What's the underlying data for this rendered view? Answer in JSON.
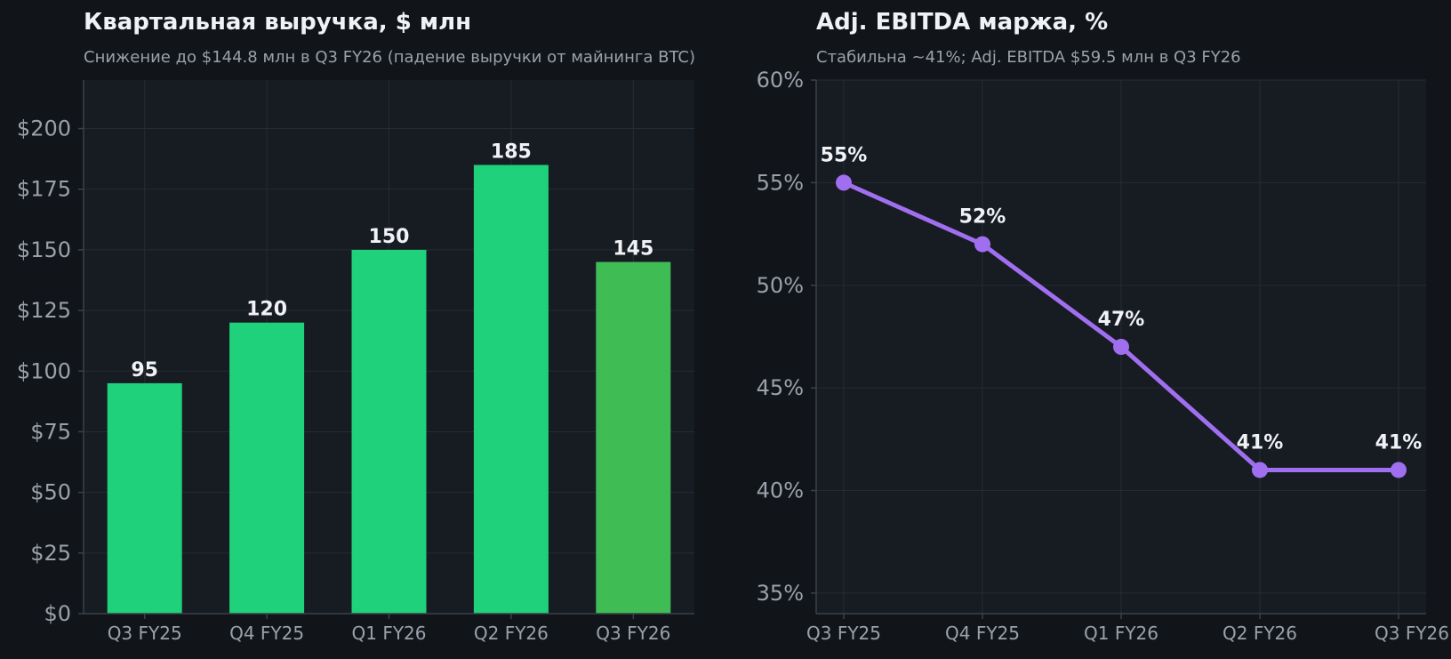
{
  "chart_data": [
    {
      "type": "bar",
      "title": "Квартальная выручка, $ млн",
      "subtitle": "Снижение до $144.8 млн в Q3 FY26 (падение выручки от майнинга BTC)",
      "categories": [
        "Q3 FY25",
        "Q4 FY25",
        "Q1 FY26",
        "Q2 FY26",
        "Q3 FY26"
      ],
      "values": [
        95,
        120,
        150,
        185,
        145
      ],
      "data_labels": [
        "95",
        "120",
        "150",
        "185",
        "145"
      ],
      "bar_colors": [
        "#20d17b",
        "#20d17b",
        "#20d17b",
        "#20d17b",
        "#40bc55"
      ],
      "ylim": [
        0,
        220
      ],
      "yticks": [
        0,
        25,
        50,
        75,
        100,
        125,
        150,
        175,
        200
      ],
      "ytick_labels": [
        "$0",
        "$25",
        "$50",
        "$75",
        "$100",
        "$125",
        "$150",
        "$175",
        "$200"
      ],
      "grid": true
    },
    {
      "type": "line",
      "title": "Adj. EBITDA маржа, %",
      "subtitle": "Стабильна ~41%; Adj. EBITDA $59.5 млн в Q3 FY26",
      "categories": [
        "Q3 FY25",
        "Q4 FY25",
        "Q1 FY26",
        "Q2 FY26",
        "Q3 FY26"
      ],
      "values": [
        55,
        52,
        47,
        41,
        41
      ],
      "data_labels": [
        "55%",
        "52%",
        "47%",
        "41%",
        "41%"
      ],
      "line_color": "#a06ff0",
      "ylim": [
        34,
        60
      ],
      "yticks": [
        35,
        40,
        45,
        50,
        55,
        60
      ],
      "ytick_labels": [
        "35%",
        "40%",
        "45%",
        "50%",
        "55%",
        "60%"
      ],
      "grid": true
    }
  ],
  "colors": {
    "background": "#111519",
    "plot_background": "#171b22",
    "grid": "#262c35",
    "axis": "#3a414b",
    "text": "#f0f2f5",
    "muted_text": "#9aa1aa"
  }
}
